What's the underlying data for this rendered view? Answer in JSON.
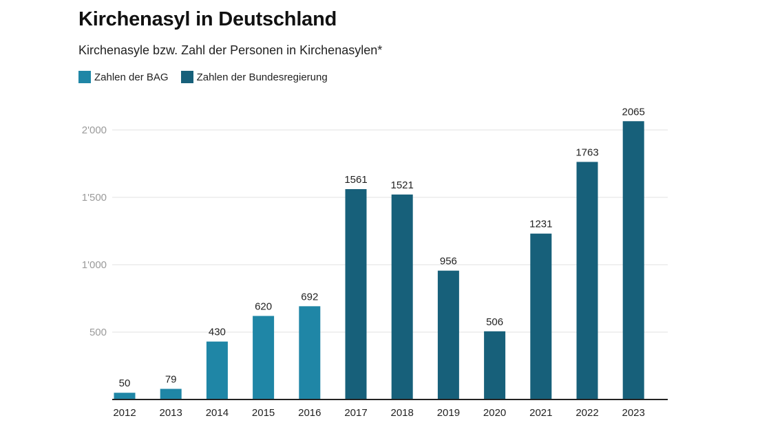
{
  "chart_data": {
    "type": "bar",
    "title": "Kirchenasyl in Deutschland",
    "subtitle": "Kirchenasyle bzw. Zahl der Personen in Kirchenasylen*",
    "categories": [
      "2012",
      "2013",
      "2014",
      "2015",
      "2016",
      "2017",
      "2018",
      "2019",
      "2020",
      "2021",
      "2022",
      "2023"
    ],
    "series": [
      {
        "name": "Zahlen der BAG",
        "color": "#1f86a6",
        "values": [
          50,
          79,
          430,
          620,
          692,
          null,
          null,
          null,
          null,
          null,
          null,
          null
        ]
      },
      {
        "name": "Zahlen der Bundesregierung",
        "color": "#17607a",
        "values": [
          null,
          null,
          null,
          null,
          null,
          1561,
          1521,
          956,
          506,
          1231,
          1763,
          2065
        ]
      }
    ],
    "data_labels": [
      "50",
      "79",
      "430",
      "620",
      "692",
      "1561",
      "1521",
      "956",
      "506",
      "1231",
      "1763",
      "2065"
    ],
    "yticks": [
      500,
      1000,
      1500,
      2000
    ],
    "ytick_labels": [
      "500",
      "1'000",
      "1'500",
      "2'000"
    ],
    "ylim": [
      0,
      2000
    ],
    "grid": true,
    "legend_position": "top-left"
  }
}
